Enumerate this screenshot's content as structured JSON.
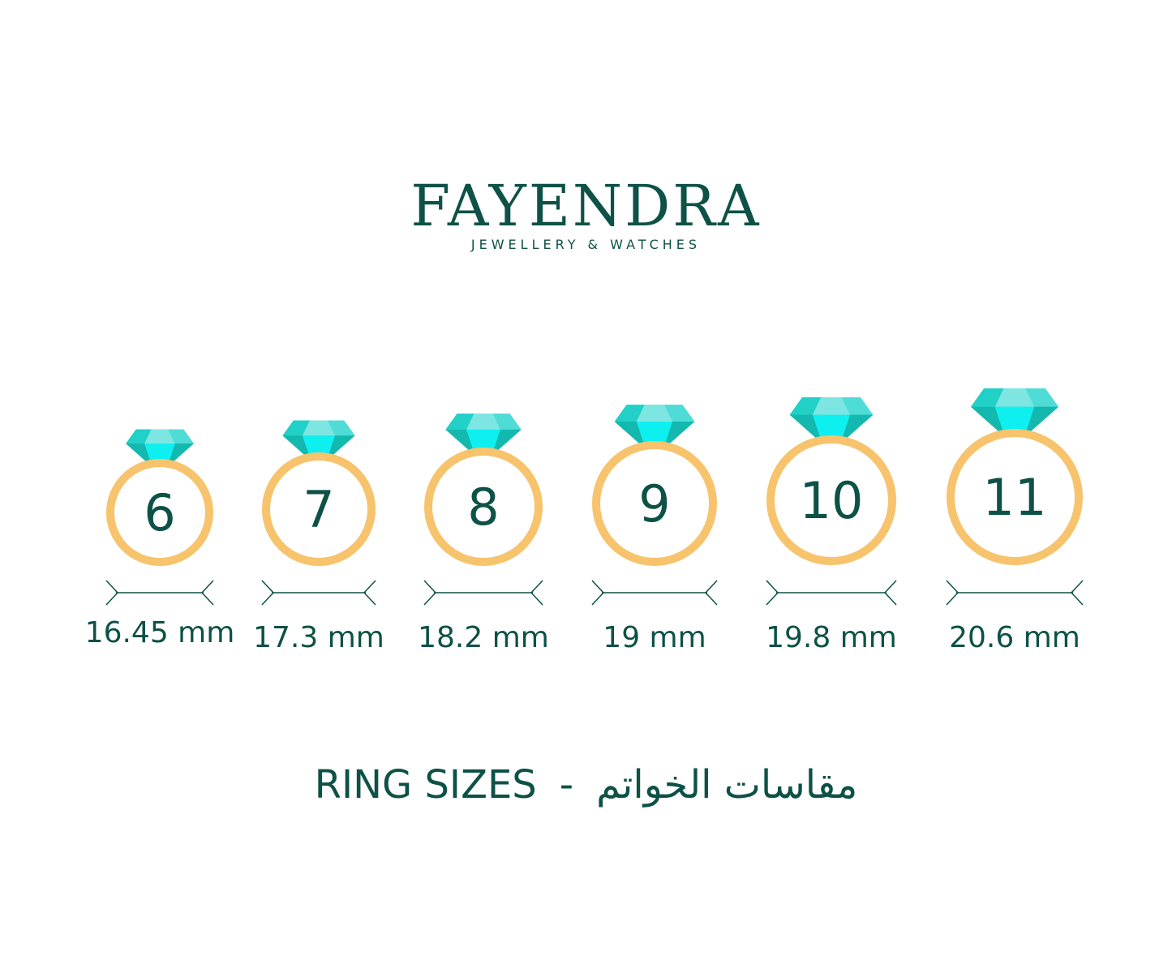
{
  "brand": {
    "name": "FAYENDRA",
    "tagline": "JEWELLERY & WATCHES"
  },
  "colors": {
    "text": "#0d5147",
    "ring": "#f7c36c",
    "gem_dark": "#13b8ae",
    "gem_mid": "#21d0c6",
    "gem_light": "#7de6e2",
    "gem_bright": "#0ef0f0"
  },
  "rings": [
    {
      "size": "6",
      "diameter": "16.45 mm"
    },
    {
      "size": "7",
      "diameter": "17.3 mm"
    },
    {
      "size": "8",
      "diameter": "18.2 mm"
    },
    {
      "size": "9",
      "diameter": "19 mm"
    },
    {
      "size": "10",
      "diameter": "19.8 mm"
    },
    {
      "size": "11",
      "diameter": "20.6 mm"
    }
  ],
  "footer": {
    "english": "RING SIZES",
    "separator": "-",
    "arabic": "مقاسات الخواتم"
  }
}
